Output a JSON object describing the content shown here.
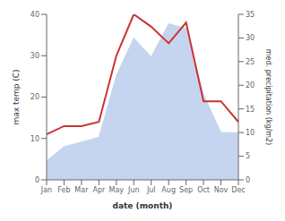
{
  "chart_data": {
    "type": "line",
    "xlabel": "date (month)",
    "ylabel": "max temp (C)",
    "y2label": "med. precipitation (kg/m2)",
    "categories": [
      "Jan",
      "Feb",
      "Mar",
      "Apr",
      "May",
      "Jun",
      "Jul",
      "Aug",
      "Sep",
      "Oct",
      "Nov",
      "Dec"
    ],
    "series": [
      {
        "type": "area",
        "axis": "y2",
        "color": "#c5d5f0",
        "values": [
          4,
          7,
          8,
          9,
          22,
          30,
          26,
          33,
          32,
          18,
          10,
          10
        ]
      },
      {
        "type": "line",
        "color": "#cc3333",
        "values": [
          11,
          13,
          13,
          14,
          30,
          40,
          37,
          33,
          38,
          19,
          19,
          14
        ]
      }
    ],
    "ylim": [
      0,
      40
    ],
    "yticks": [
      0,
      10,
      20,
      30,
      40
    ],
    "y2lim": [
      0,
      35
    ],
    "y2ticks": [
      0,
      5,
      10,
      15,
      20,
      25,
      30,
      35
    ],
    "grid": false
  }
}
